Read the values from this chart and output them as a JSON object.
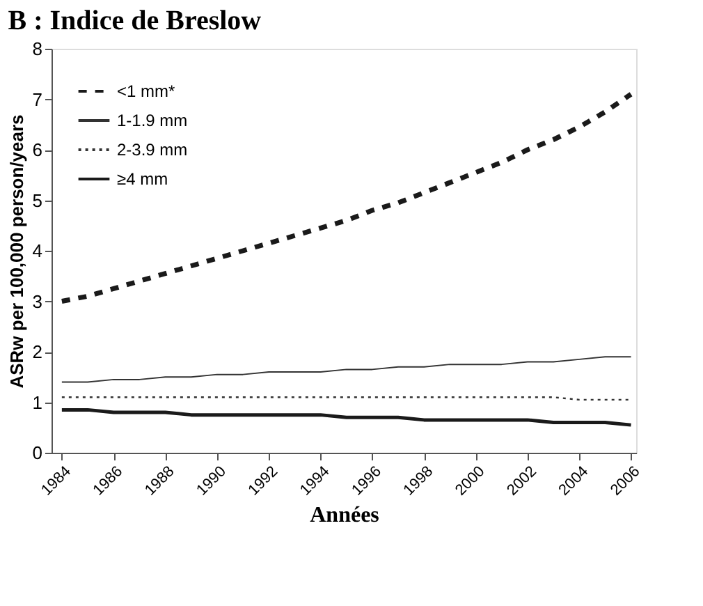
{
  "chart_data": {
    "type": "line",
    "title": "B : Indice de Breslow",
    "xlabel": "Années",
    "ylabel": "ASRw per 100,000 person/years",
    "x": [
      1984,
      1985,
      1986,
      1987,
      1988,
      1989,
      1990,
      1991,
      1992,
      1993,
      1994,
      1995,
      1996,
      1997,
      1998,
      1999,
      2000,
      2001,
      2002,
      2003,
      2004,
      2005,
      2006
    ],
    "series": [
      {
        "name": "<1 mm*",
        "color": "#1a1a1a",
        "line_style": "dashed",
        "values": [
          3.0,
          3.1,
          3.25,
          3.4,
          3.55,
          3.7,
          3.85,
          4.0,
          4.15,
          4.3,
          4.45,
          4.6,
          4.8,
          4.95,
          5.15,
          5.35,
          5.55,
          5.75,
          6.0,
          6.2,
          6.45,
          6.75,
          7.1
        ]
      },
      {
        "name": "1-1.9 mm",
        "color": "#333333",
        "line_style": "solid",
        "values": [
          1.4,
          1.4,
          1.45,
          1.45,
          1.5,
          1.5,
          1.55,
          1.55,
          1.6,
          1.6,
          1.6,
          1.65,
          1.65,
          1.7,
          1.7,
          1.75,
          1.75,
          1.75,
          1.8,
          1.8,
          1.85,
          1.9,
          1.9
        ]
      },
      {
        "name": "2-3.9 mm",
        "color": "#333333",
        "line_style": "dotted",
        "values": [
          1.1,
          1.1,
          1.1,
          1.1,
          1.1,
          1.1,
          1.1,
          1.1,
          1.1,
          1.1,
          1.1,
          1.1,
          1.1,
          1.1,
          1.1,
          1.1,
          1.1,
          1.1,
          1.1,
          1.1,
          1.05,
          1.05,
          1.05
        ]
      },
      {
        "name": "≥4 mm",
        "color": "#1a1a1a",
        "line_style": "solid",
        "values": [
          0.85,
          0.85,
          0.8,
          0.8,
          0.8,
          0.75,
          0.75,
          0.75,
          0.75,
          0.75,
          0.75,
          0.7,
          0.7,
          0.7,
          0.65,
          0.65,
          0.65,
          0.65,
          0.65,
          0.6,
          0.6,
          0.6,
          0.55
        ]
      }
    ],
    "xlim": [
      1983.6,
      2006.2
    ],
    "xticks": [
      1984,
      1986,
      1988,
      1990,
      1992,
      1994,
      1996,
      1998,
      2000,
      2002,
      2004,
      2006
    ],
    "ylim": [
      0,
      8
    ],
    "yticks": [
      0,
      1,
      2,
      3,
      4,
      5,
      6,
      7,
      8
    ],
    "grid": false,
    "legend": "top left"
  }
}
